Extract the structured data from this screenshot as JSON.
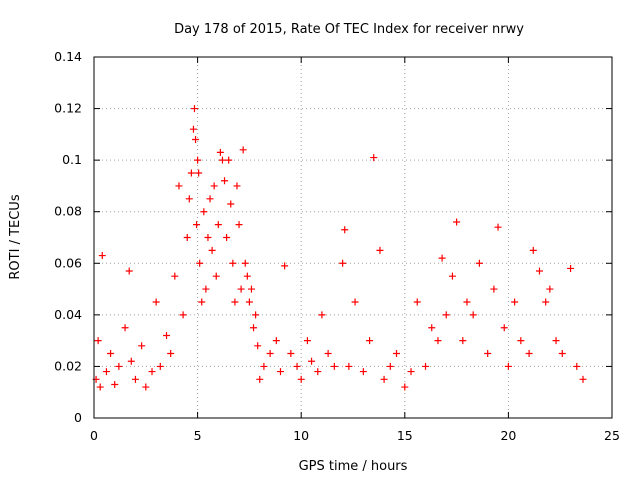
{
  "chart_data": {
    "type": "scatter",
    "title": "Day 178 of 2015, Rate Of TEC Index for receiver nrwy",
    "xlabel": "GPS time / hours",
    "ylabel": "ROTI / TECUs",
    "xlim": [
      0,
      25
    ],
    "ylim": [
      0,
      0.14
    ],
    "x_ticks": [
      0,
      5,
      10,
      15,
      20,
      25
    ],
    "y_ticks": [
      0,
      0.02,
      0.04,
      0.06,
      0.08,
      0.1,
      0.12,
      0.14
    ],
    "x_tick_labels": [
      "0",
      "5",
      "10",
      "15",
      "20",
      "25"
    ],
    "y_tick_labels": [
      "0",
      "0.02",
      "0.04",
      "0.06",
      "0.08",
      "0.1",
      "0.12",
      "0.14"
    ],
    "grid": true,
    "marker": "+",
    "marker_color": "#ff0000",
    "series": [
      {
        "name": "ROTI",
        "x": [
          0.1,
          0.2,
          0.3,
          0.4,
          0.6,
          0.8,
          1.0,
          1.2,
          1.5,
          1.7,
          1.8,
          2.0,
          2.3,
          2.5,
          2.8,
          3.0,
          3.2,
          3.5,
          3.7,
          3.9,
          4.1,
          4.3,
          4.5,
          4.6,
          4.7,
          4.8,
          4.85,
          4.9,
          4.95,
          5.0,
          5.05,
          5.1,
          5.2,
          5.3,
          5.4,
          5.5,
          5.6,
          5.7,
          5.8,
          5.9,
          6.0,
          6.1,
          6.2,
          6.3,
          6.4,
          6.5,
          6.6,
          6.7,
          6.8,
          6.9,
          7.0,
          7.1,
          7.2,
          7.3,
          7.4,
          7.5,
          7.6,
          7.7,
          7.8,
          7.9,
          8.0,
          8.2,
          8.5,
          8.8,
          9.0,
          9.2,
          9.5,
          9.8,
          10.0,
          10.3,
          10.5,
          10.8,
          11.0,
          11.3,
          11.6,
          12.0,
          12.1,
          12.3,
          12.6,
          13.0,
          13.3,
          13.5,
          13.8,
          14.0,
          14.3,
          14.6,
          15.0,
          15.3,
          15.6,
          16.0,
          16.3,
          16.6,
          16.8,
          17.0,
          17.3,
          17.5,
          17.8,
          18.0,
          18.3,
          18.6,
          19.0,
          19.3,
          19.5,
          19.8,
          20.0,
          20.3,
          20.6,
          21.0,
          21.2,
          21.5,
          21.8,
          22.0,
          22.3,
          22.6,
          23.0,
          23.3,
          23.6
        ],
        "y": [
          0.015,
          0.03,
          0.012,
          0.063,
          0.018,
          0.025,
          0.013,
          0.02,
          0.035,
          0.057,
          0.022,
          0.015,
          0.028,
          0.012,
          0.018,
          0.045,
          0.02,
          0.032,
          0.025,
          0.055,
          0.09,
          0.04,
          0.07,
          0.085,
          0.095,
          0.112,
          0.12,
          0.108,
          0.075,
          0.1,
          0.095,
          0.06,
          0.045,
          0.08,
          0.05,
          0.07,
          0.085,
          0.065,
          0.09,
          0.055,
          0.075,
          0.103,
          0.1,
          0.092,
          0.07,
          0.1,
          0.083,
          0.06,
          0.045,
          0.09,
          0.075,
          0.05,
          0.104,
          0.06,
          0.055,
          0.045,
          0.05,
          0.035,
          0.04,
          0.028,
          0.015,
          0.02,
          0.025,
          0.03,
          0.018,
          0.059,
          0.025,
          0.02,
          0.015,
          0.03,
          0.022,
          0.018,
          0.04,
          0.025,
          0.02,
          0.06,
          0.073,
          0.02,
          0.045,
          0.018,
          0.03,
          0.101,
          0.065,
          0.015,
          0.02,
          0.025,
          0.012,
          0.018,
          0.045,
          0.02,
          0.035,
          0.03,
          0.062,
          0.04,
          0.055,
          0.076,
          0.03,
          0.045,
          0.04,
          0.06,
          0.025,
          0.05,
          0.074,
          0.035,
          0.02,
          0.045,
          0.03,
          0.025,
          0.065,
          0.057,
          0.045,
          0.05,
          0.03,
          0.025,
          0.058,
          0.02,
          0.015
        ]
      }
    ]
  }
}
